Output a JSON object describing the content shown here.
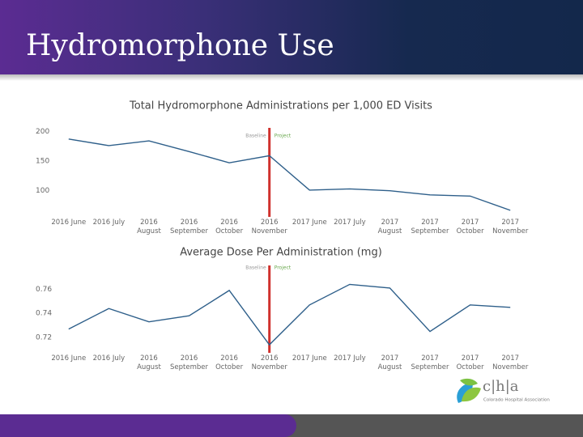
{
  "title": "Hydromorphone Use",
  "chart_data": [
    {
      "type": "line",
      "title": "Total Hydromorphone Administrations per 1,000 ED Visits",
      "categories": [
        "2016 June",
        "2016 July",
        "2016 August",
        "2016 September",
        "2016 October",
        "2016 November",
        "2017 June",
        "2017 July",
        "2017 August",
        "2017 September",
        "2017 October",
        "2017 November"
      ],
      "series": [
        {
          "name": "Total Hydromorphone Administrations per 1,000 ED Visits",
          "color": "#2e5f8a",
          "values": [
            187,
            176,
            184,
            166,
            147,
            159,
            101,
            103,
            100,
            93,
            91,
            67
          ]
        }
      ],
      "ylim": [
        60,
        210
      ],
      "yticks": [
        100,
        150,
        200
      ],
      "grid": false,
      "annotations": [
        {
          "text": "Baseline",
          "color": "#9a9a9a"
        },
        {
          "text": "Project",
          "color": "#6aa84f"
        }
      ],
      "divider": {
        "at": "2016 November",
        "color": "#d0312d"
      }
    },
    {
      "type": "line",
      "title": "Average Dose Per Administration (mg)",
      "categories": [
        "2016 June",
        "2016 July",
        "2016 August",
        "2016 September",
        "2016 October",
        "2016 November",
        "2017 June",
        "2017 July",
        "2017 August",
        "2017 September",
        "2017 October",
        "2017 November"
      ],
      "series": [
        {
          "name": "Average Dose Per Administration (mg)",
          "color": "#2e5f8a",
          "values": [
            0.727,
            0.744,
            0.733,
            0.738,
            0.759,
            0.714,
            0.747,
            0.764,
            0.761,
            0.725,
            0.747,
            0.745
          ]
        }
      ],
      "ylim": [
        0.71,
        0.775
      ],
      "yticks": [
        0.72,
        0.74,
        0.76
      ],
      "grid": false,
      "annotations": [
        {
          "text": "Baseline",
          "color": "#9a9a9a"
        },
        {
          "text": "Project",
          "color": "#6aa84f"
        }
      ],
      "divider": {
        "at": "2016 November",
        "color": "#d0312d"
      }
    }
  ],
  "logo": {
    "mark": "c|h|a",
    "name": "Colorado Hospital Association"
  }
}
